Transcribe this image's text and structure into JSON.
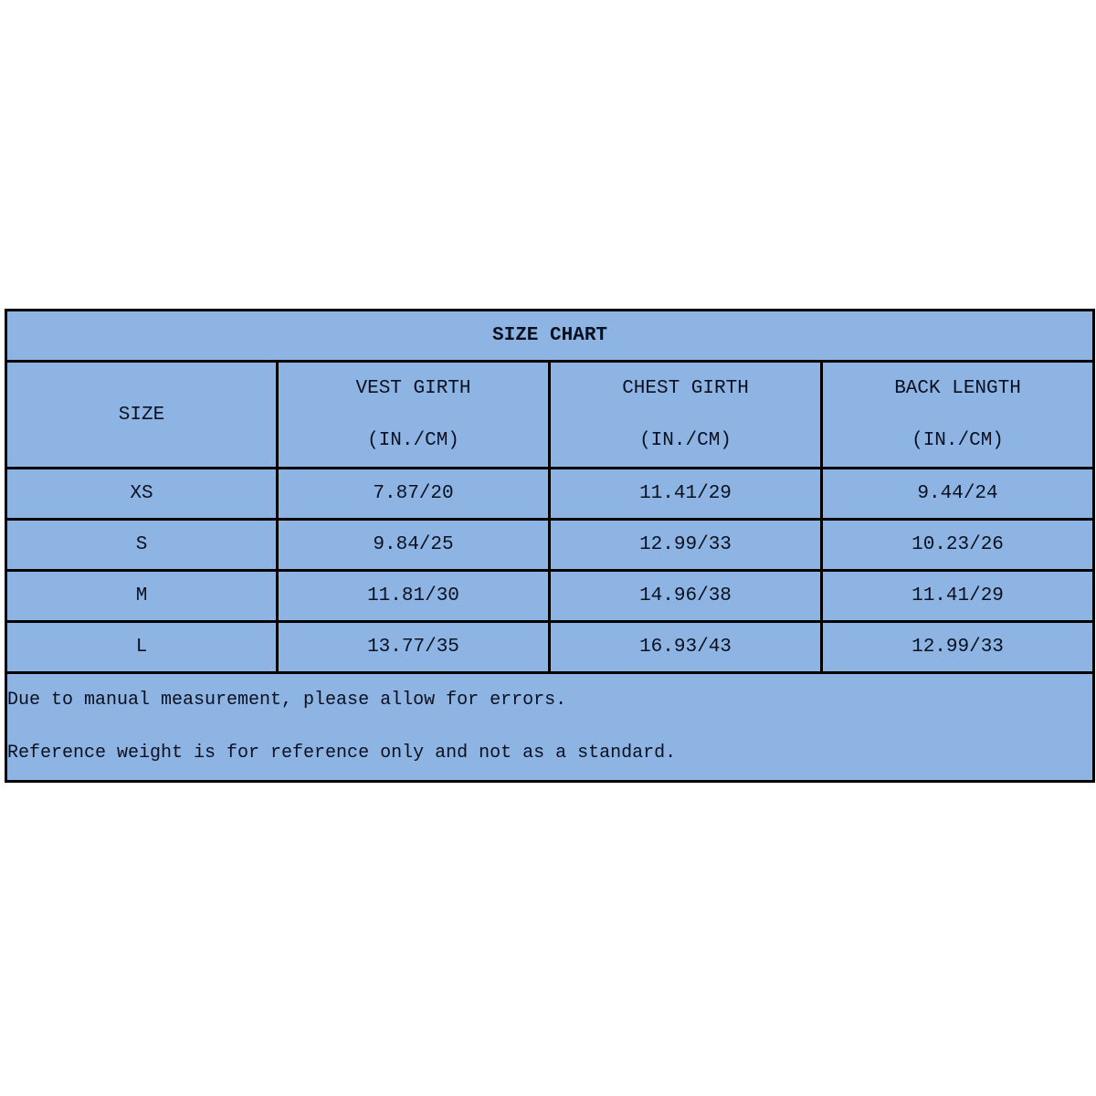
{
  "title": "SIZE CHART",
  "headers": [
    {
      "label": "SIZE",
      "unit": ""
    },
    {
      "label": "VEST GIRTH",
      "unit": "(IN./CM)"
    },
    {
      "label": "CHEST GIRTH",
      "unit": "(IN./CM)"
    },
    {
      "label": "BACK LENGTH",
      "unit": "(IN./CM)"
    }
  ],
  "rows": [
    [
      "XS",
      "7.87/20",
      "11.41/29",
      "9.44/24"
    ],
    [
      "S",
      "9.84/25",
      "12.99/33",
      "10.23/26"
    ],
    [
      "M",
      "11.81/30",
      "14.96/38",
      "11.41/29"
    ],
    [
      "L",
      "13.77/35",
      "16.93/43",
      "12.99/33"
    ]
  ],
  "notes": [
    "Due to manual measurement, please allow for errors.",
    "Reference weight is for reference only and not as a standard."
  ],
  "colors": {
    "cell_fill": "#8db4e2",
    "border": "#000000"
  }
}
